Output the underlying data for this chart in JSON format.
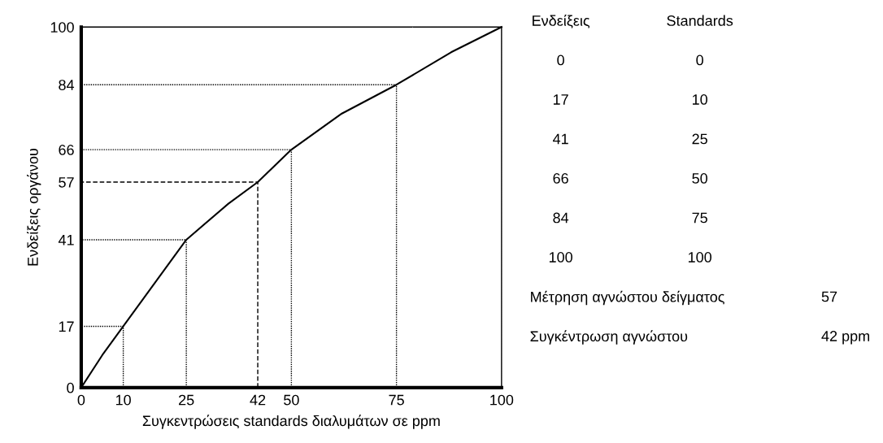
{
  "chart_data": [
    {
      "type": "line",
      "xlabel": "Συγκεντρώσεις standards διαλυμάτων σε ppm",
      "ylabel": "Ενδείξεις οργάνου",
      "xlim": [
        0,
        100
      ],
      "ylim": [
        0,
        100
      ],
      "xticks": [
        0,
        10,
        25,
        42,
        50,
        75,
        100
      ],
      "yticks": [
        0,
        17,
        41,
        57,
        66,
        84,
        100
      ],
      "grid": false,
      "legend": false,
      "series": [
        {
          "color": "#000000",
          "x": [
            0,
            5,
            10,
            15,
            25,
            35,
            42,
            50,
            62,
            75,
            88,
            100
          ],
          "values": [
            0,
            9,
            17,
            25,
            41,
            51,
            57,
            66,
            76,
            84,
            93,
            100
          ],
          "line_style": "solid"
        },
        {
          "color": "#000000",
          "x": [
            10,
            10,
            0
          ],
          "values": [
            0,
            17,
            17
          ],
          "line_style": "dotted"
        },
        {
          "color": "#000000",
          "x": [
            25,
            25,
            0
          ],
          "values": [
            0,
            41,
            41
          ],
          "line_style": "dotted"
        },
        {
          "color": "#000000",
          "x": [
            50,
            50,
            0
          ],
          "values": [
            0,
            66,
            66
          ],
          "line_style": "dotted"
        },
        {
          "color": "#000000",
          "x": [
            75,
            75,
            0
          ],
          "values": [
            0,
            84,
            84
          ],
          "line_style": "dotted"
        },
        {
          "color": "#000000",
          "x": [
            42,
            42,
            0
          ],
          "values": [
            0,
            57,
            57
          ],
          "line_style": "dashed"
        }
      ]
    },
    {
      "type": "other",
      "annotations": [
        "Ενδείξεις",
        "Standards",
        "0",
        "0",
        "17",
        "10",
        "41",
        "25",
        "66",
        "50",
        "84",
        "75",
        "100",
        "100",
        "Μέτρηση αγνώστου δείγματος",
        "57",
        "Συγκέντρωση αγνώστου",
        "42 ppm"
      ]
    }
  ]
}
